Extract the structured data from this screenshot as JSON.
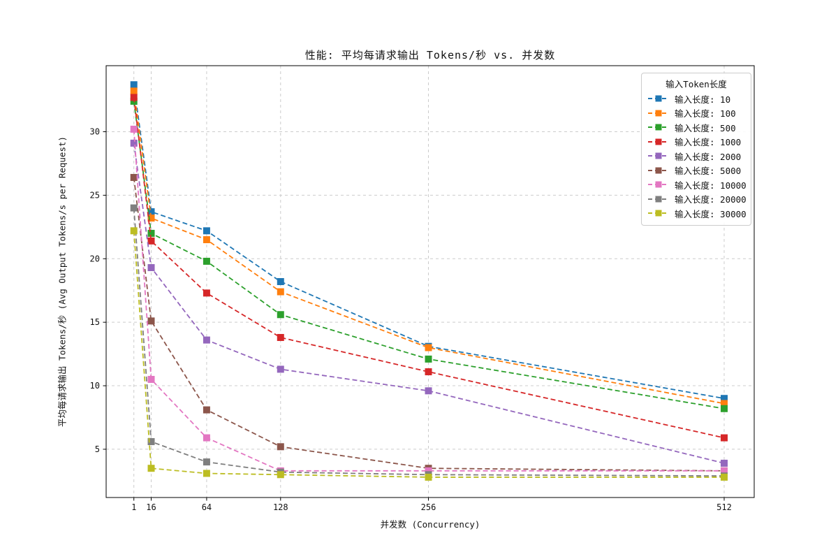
{
  "chart_data": {
    "type": "line",
    "title": "性能: 平均每请求输出 Tokens/秒 vs. 并发数",
    "xlabel": "并发数 (Concurrency)",
    "ylabel": "平均每请求输出 Tokens/秒 (Avg Output Tokens/s per Request)",
    "legend": {
      "title": "输入Token长度",
      "position": "upper right"
    },
    "grid": true,
    "line_style": "dashed",
    "marker": "square",
    "x": [
      1,
      16,
      64,
      128,
      256,
      512
    ],
    "xticks": [
      1,
      16,
      64,
      128,
      256,
      512
    ],
    "yticks": [
      5,
      10,
      15,
      20,
      25,
      30
    ],
    "xlim": [
      -23,
      538
    ],
    "ylim": [
      1.2,
      35.2
    ],
    "series": [
      {
        "name": "输入长度: 10",
        "color": "#1f77b4",
        "values": [
          33.7,
          23.7,
          22.2,
          18.2,
          13.1,
          9.0
        ]
      },
      {
        "name": "输入长度: 100",
        "color": "#ff7f0e",
        "values": [
          33.2,
          23.2,
          21.5,
          17.4,
          13.0,
          8.6
        ]
      },
      {
        "name": "输入长度: 500",
        "color": "#2ca02c",
        "values": [
          32.4,
          22.0,
          19.8,
          15.6,
          12.1,
          8.2
        ]
      },
      {
        "name": "输入长度: 1000",
        "color": "#d62728",
        "values": [
          32.7,
          21.4,
          17.3,
          13.8,
          11.1,
          5.9
        ]
      },
      {
        "name": "输入长度: 2000",
        "color": "#9467bd",
        "values": [
          29.1,
          19.3,
          13.6,
          11.3,
          9.6,
          3.9
        ]
      },
      {
        "name": "输入长度: 5000",
        "color": "#8c564b",
        "values": [
          26.4,
          15.1,
          8.1,
          5.2,
          3.5,
          3.3
        ]
      },
      {
        "name": "输入长度: 10000",
        "color": "#e377c2",
        "values": [
          30.2,
          10.5,
          5.9,
          3.3,
          3.3,
          3.3
        ]
      },
      {
        "name": "输入长度: 20000",
        "color": "#7f7f7f",
        "values": [
          24.0,
          5.6,
          4.0,
          3.2,
          3.0,
          2.9
        ]
      },
      {
        "name": "输入长度: 30000",
        "color": "#bcbd22",
        "values": [
          22.2,
          3.5,
          3.1,
          3.0,
          2.8,
          2.8
        ]
      }
    ],
    "grid_color": "#cccccc",
    "frame_color": "#000000",
    "text_color": "#111111"
  }
}
